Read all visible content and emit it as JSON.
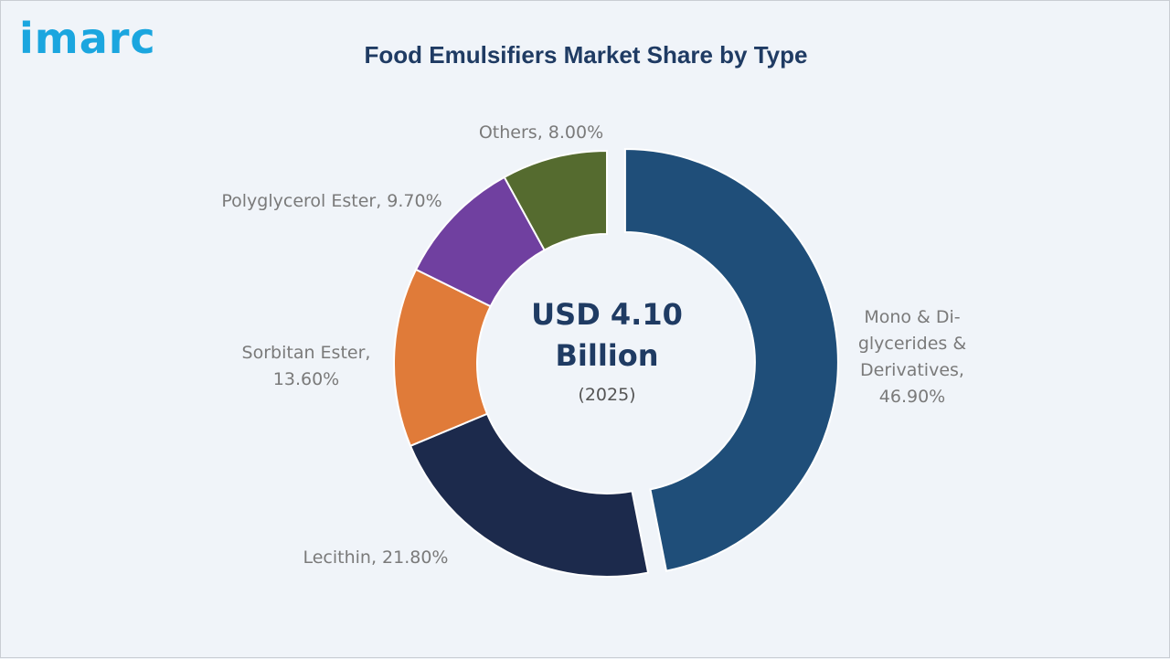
{
  "brand": {
    "logo_text": "imarc",
    "logo_color": "#1ba6df"
  },
  "chart_data": {
    "type": "pie",
    "title": "Food Emulsifiers Market Share by Type",
    "center": {
      "line1": "USD 4.10",
      "line2": "Billion",
      "line3": "(2025)"
    },
    "slices": [
      {
        "label": "Mono & Di-glycerides & Derivatives",
        "value": 46.9,
        "display": [
          "Mono & Di-",
          "glycerides &",
          "Derivatives,",
          "46.90%"
        ],
        "color": "#1f4e79"
      },
      {
        "label": "Lecithin",
        "value": 21.8,
        "display": [
          "Lecithin, 21.80%"
        ],
        "color": "#1c2a4c"
      },
      {
        "label": "Sorbitan Ester",
        "value": 13.6,
        "display": [
          "Sorbitan Ester,",
          "13.60%"
        ],
        "color": "#e07b39"
      },
      {
        "label": "Polyglycerol Ester",
        "value": 9.7,
        "display": [
          "Polyglycerol Ester, 9.70%"
        ],
        "color": "#7040a0"
      },
      {
        "label": "Others",
        "value": 8.0,
        "display": [
          "Others, 8.00%"
        ],
        "color": "#556b2f"
      }
    ]
  }
}
